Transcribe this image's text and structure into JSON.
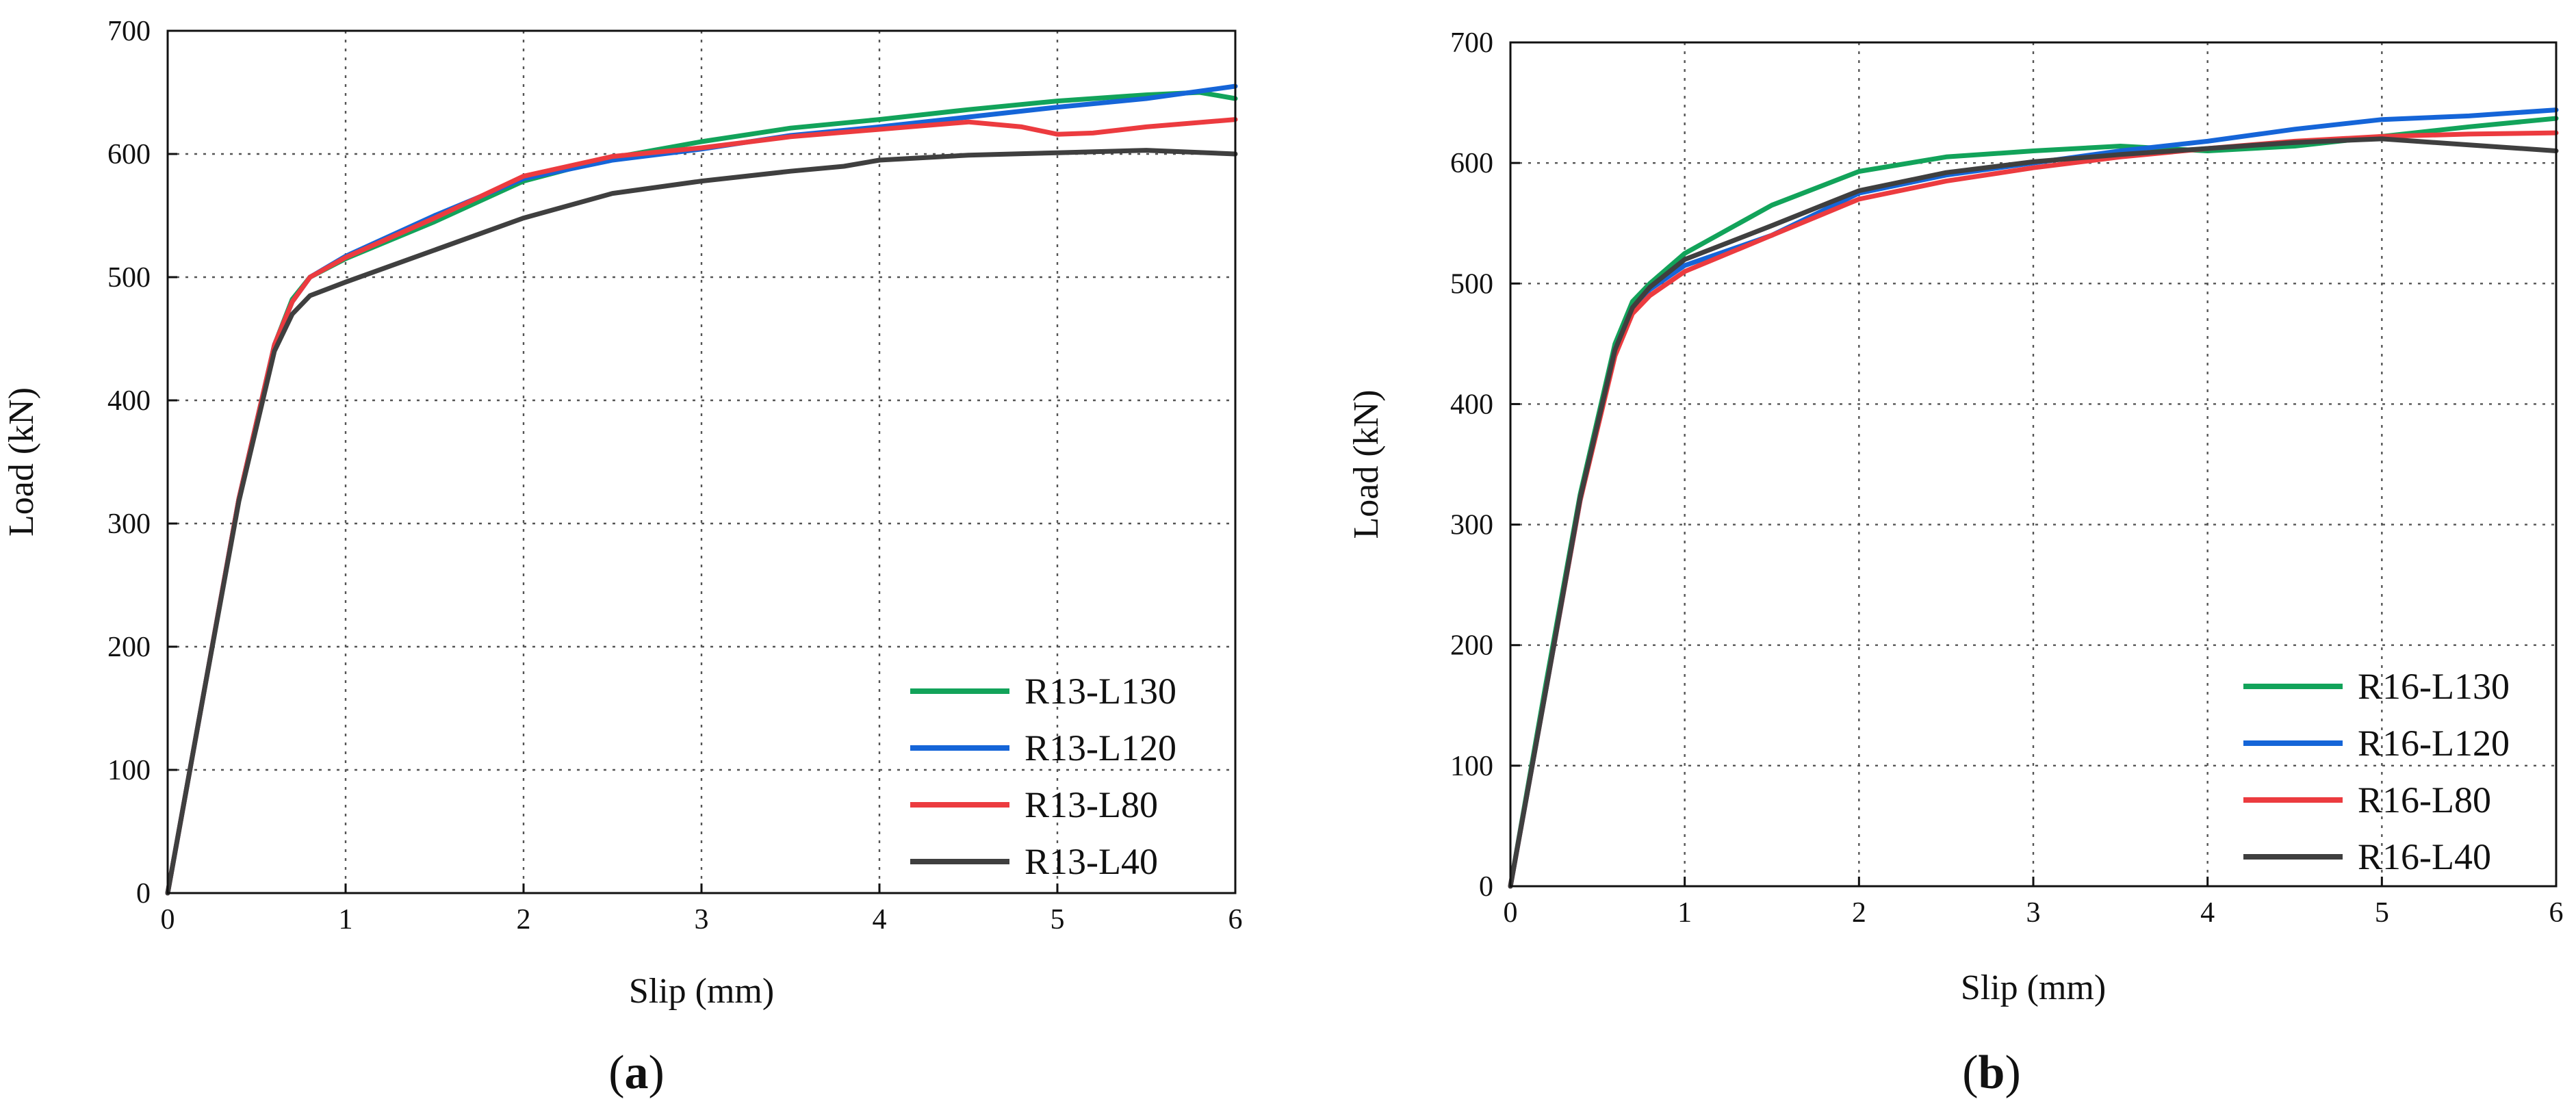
{
  "colors": {
    "green": "#12a35a",
    "blue": "#1565d8",
    "red": "#ec3b3f",
    "dark": "#3f3f3f"
  },
  "chart_data": [
    {
      "type": "line",
      "panel": "a",
      "caption": {
        "open": "(",
        "letter": "a",
        "close": ")"
      },
      "xlabel": "Slip (mm)",
      "ylabel": "Load (kN)",
      "xlim": [
        0,
        6
      ],
      "ylim": [
        0,
        700
      ],
      "xticks": [
        0,
        1,
        2,
        3,
        4,
        5,
        6
      ],
      "yticks": [
        0,
        100,
        200,
        300,
        400,
        500,
        600,
        700
      ],
      "grid": true,
      "legend_position": "bottom-right",
      "series": [
        {
          "name": "R13-L130",
          "color": "#12a35a",
          "x": [
            0,
            0.2,
            0.4,
            0.6,
            0.7,
            0.8,
            1.0,
            1.5,
            2.0,
            2.5,
            3.0,
            3.5,
            4.0,
            4.5,
            5.0,
            5.5,
            5.8,
            6.0
          ],
          "y": [
            0,
            160,
            320,
            445,
            482,
            500,
            515,
            545,
            578,
            597,
            610,
            621,
            628,
            636,
            643,
            648,
            650,
            645
          ]
        },
        {
          "name": "R13-L120",
          "color": "#1565d8",
          "x": [
            0,
            0.2,
            0.4,
            0.6,
            0.7,
            0.8,
            1.0,
            1.5,
            2.0,
            2.5,
            3.0,
            3.5,
            4.0,
            4.5,
            5.0,
            5.5,
            6.0
          ],
          "y": [
            0,
            160,
            320,
            445,
            480,
            500,
            517,
            550,
            580,
            595,
            604,
            615,
            622,
            630,
            638,
            645,
            655
          ]
        },
        {
          "name": "R13-L80",
          "color": "#ec3b3f",
          "x": [
            0,
            0.2,
            0.4,
            0.6,
            0.7,
            0.8,
            1.0,
            1.5,
            2.0,
            2.5,
            3.0,
            3.5,
            4.0,
            4.5,
            4.8,
            5.0,
            5.2,
            5.5,
            6.0
          ],
          "y": [
            0,
            160,
            320,
            445,
            480,
            500,
            516,
            548,
            582,
            598,
            605,
            614,
            620,
            626,
            622,
            616,
            617,
            622,
            628
          ]
        },
        {
          "name": "R13-L40",
          "color": "#3f3f3f",
          "x": [
            0,
            0.2,
            0.4,
            0.6,
            0.7,
            0.8,
            1.0,
            1.5,
            2.0,
            2.5,
            3.0,
            3.5,
            3.8,
            4.0,
            4.5,
            5.0,
            5.5,
            6.0
          ],
          "y": [
            0,
            160,
            318,
            440,
            470,
            485,
            496,
            522,
            548,
            568,
            578,
            586,
            590,
            595,
            599,
            601,
            603,
            600
          ]
        }
      ]
    },
    {
      "type": "line",
      "panel": "b",
      "caption": {
        "open": "(",
        "letter": "b",
        "close": ")"
      },
      "xlabel": "Slip (mm)",
      "ylabel": "Load (kN)",
      "xlim": [
        0,
        6
      ],
      "ylim": [
        0,
        700
      ],
      "xticks": [
        0,
        1,
        2,
        3,
        4,
        5,
        6
      ],
      "yticks": [
        0,
        100,
        200,
        300,
        400,
        500,
        600,
        700
      ],
      "grid": true,
      "legend_position": "bottom-right",
      "series": [
        {
          "name": "R16-L130",
          "color": "#12a35a",
          "x": [
            0,
            0.2,
            0.4,
            0.6,
            0.7,
            0.8,
            1.0,
            1.5,
            2.0,
            2.5,
            3.0,
            3.5,
            4.0,
            4.5,
            5.0,
            5.5,
            6.0
          ],
          "y": [
            0,
            165,
            325,
            450,
            485,
            500,
            525,
            565,
            593,
            605,
            610,
            614,
            610,
            614,
            622,
            630,
            637
          ]
        },
        {
          "name": "R16-L120",
          "color": "#1565d8",
          "x": [
            0,
            0.2,
            0.4,
            0.6,
            0.7,
            0.8,
            1.0,
            1.5,
            2.0,
            2.5,
            3.0,
            3.5,
            4.0,
            4.5,
            5.0,
            5.5,
            6.0
          ],
          "y": [
            0,
            160,
            320,
            445,
            480,
            495,
            515,
            540,
            575,
            590,
            600,
            610,
            618,
            628,
            636,
            639,
            644
          ]
        },
        {
          "name": "R16-L80",
          "color": "#ec3b3f",
          "x": [
            0,
            0.2,
            0.4,
            0.6,
            0.7,
            0.8,
            1.0,
            1.5,
            2.0,
            2.5,
            3.0,
            3.5,
            4.0,
            4.5,
            5.0,
            5.5,
            6.0
          ],
          "y": [
            0,
            160,
            320,
            440,
            475,
            490,
            510,
            540,
            570,
            585,
            596,
            605,
            612,
            618,
            622,
            624,
            625
          ]
        },
        {
          "name": "R16-L40",
          "color": "#3f3f3f",
          "x": [
            0,
            0.2,
            0.4,
            0.6,
            0.7,
            0.8,
            1.0,
            1.5,
            2.0,
            2.5,
            3.0,
            3.5,
            4.0,
            4.5,
            5.0,
            5.5,
            6.0
          ],
          "y": [
            0,
            160,
            322,
            445,
            480,
            497,
            520,
            548,
            577,
            592,
            601,
            607,
            612,
            617,
            620,
            615,
            610
          ]
        }
      ]
    }
  ]
}
